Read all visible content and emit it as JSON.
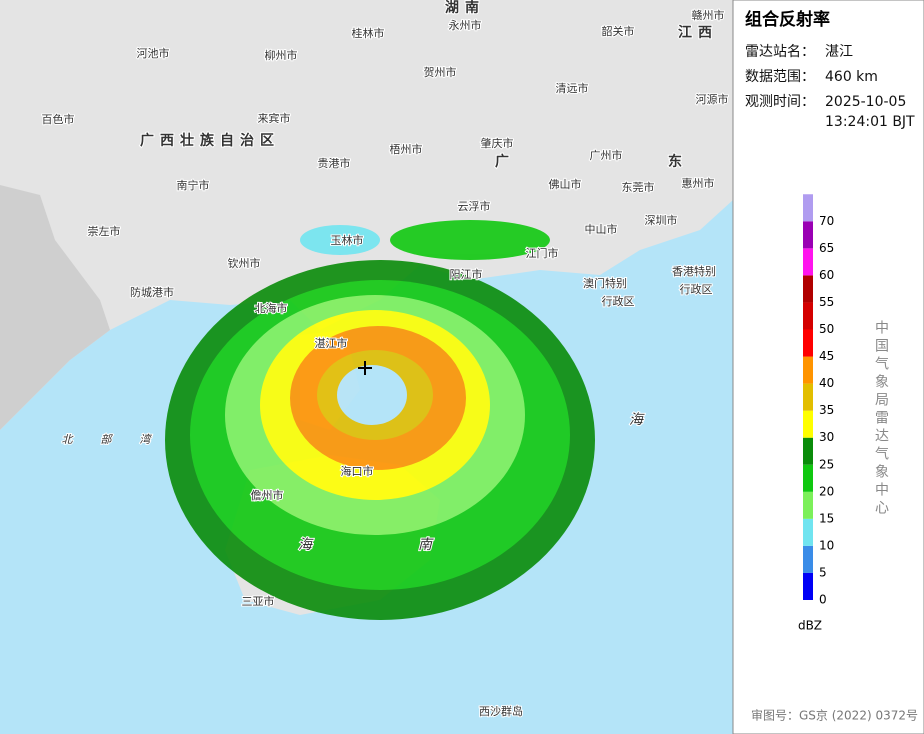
{
  "panel": {
    "title": "组合反射率",
    "info": [
      {
        "label": "雷达站名：",
        "value": "湛江"
      },
      {
        "label": "数据范围：",
        "value": "460 km"
      },
      {
        "label": "观测时间：",
        "value": "2025-10-05"
      }
    ],
    "time2": "13:24:01 BJT",
    "legend": {
      "unit": "dBZ",
      "levels": [
        {
          "value": 0,
          "color": "#0000f6"
        },
        {
          "value": 5,
          "color": "#3a8ce8"
        },
        {
          "value": 10,
          "color": "#70e4f0"
        },
        {
          "value": 15,
          "color": "#7cf05a"
        },
        {
          "value": 20,
          "color": "#10c810"
        },
        {
          "value": 25,
          "color": "#0a8c0a"
        },
        {
          "value": 30,
          "color": "#ffff00"
        },
        {
          "value": 35,
          "color": "#e2be00"
        },
        {
          "value": 40,
          "color": "#ff9400"
        },
        {
          "value": 45,
          "color": "#ff0000"
        },
        {
          "value": 50,
          "color": "#d40000"
        },
        {
          "value": 55,
          "color": "#b00000"
        },
        {
          "value": 60,
          "color": "#ff14ee"
        },
        {
          "value": 65,
          "color": "#9a00b4"
        },
        {
          "value": 70,
          "color": "#b09cf0"
        }
      ]
    },
    "credit": "中国气象局雷达气象中心",
    "footer": "审图号：GS京 (2022) 0372号"
  },
  "map": {
    "labels": [
      "湖南",
      "永州市",
      "赣州市",
      "江西",
      "桂林市",
      "韶关市",
      "河池市",
      "柳州市",
      "贺州市",
      "河源市",
      "百色市",
      "来宾市",
      "清远市",
      "广西壮族自治区",
      "贵港市",
      "梧州市",
      "肇庆市",
      "广州市",
      "广",
      "东",
      "佛山市",
      "东莞市",
      "惠州市",
      "崇左市",
      "南宁市",
      "云浮市",
      "中山市",
      "深圳市",
      "玉林市",
      "钦州市",
      "江门市",
      "阳江市",
      "防城港市",
      "北海市",
      "澳门特别",
      "行政区",
      "香港特别",
      "行政区",
      "湛江市",
      "北部湾",
      "海",
      "海口市",
      "儋州市",
      "海",
      "南",
      "三亚市",
      "西沙群岛"
    ]
  }
}
